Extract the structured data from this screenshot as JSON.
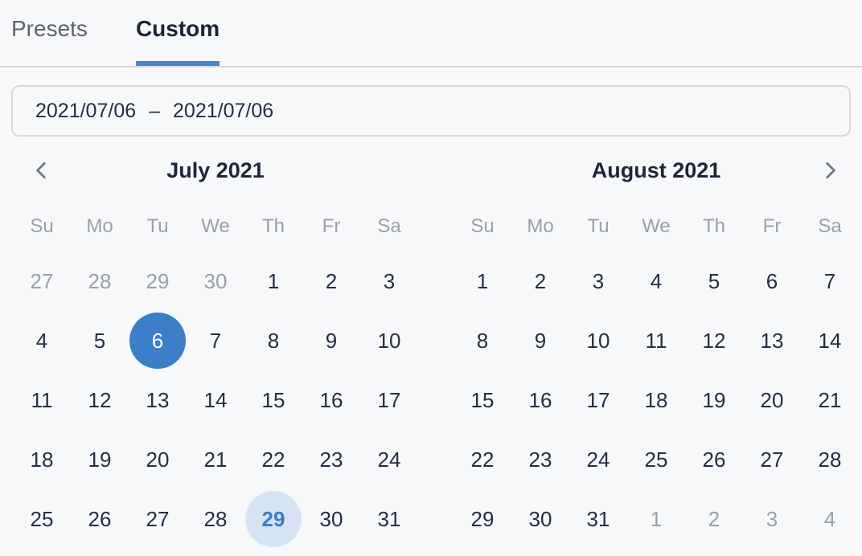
{
  "colors": {
    "accent": "#3d7ec9",
    "accent_underline": "#4285d1",
    "today_bg": "#d7e3f5",
    "today_text": "#3a7cc9",
    "text_dark": "#242e42",
    "text_muted": "#99a0a9",
    "title_text": "#1e2638",
    "tab_inactive": "#5c6370",
    "tab_active": "#1b2334",
    "divider": "#d8d9dc",
    "input_border": "#d5d7da",
    "background": "#f7f8fa",
    "chevron": "#6f7787",
    "selected_text": "#ffffff"
  },
  "tabs": [
    {
      "label": "Presets",
      "active": false
    },
    {
      "label": "Custom",
      "active": true
    }
  ],
  "range_input": {
    "start": "2021/07/06",
    "separator": "–",
    "end": "2021/07/06"
  },
  "nav": {
    "prev_icon": "chevron-left",
    "next_icon": "chevron-right"
  },
  "weekdays": [
    "Su",
    "Mo",
    "Tu",
    "We",
    "Th",
    "Fr",
    "Sa"
  ],
  "calendars": [
    {
      "title": "July 2021",
      "weeks": [
        [
          {
            "label": "27",
            "state": "muted"
          },
          {
            "label": "28",
            "state": "muted"
          },
          {
            "label": "29",
            "state": "muted"
          },
          {
            "label": "30",
            "state": "muted"
          },
          {
            "label": "1",
            "state": ""
          },
          {
            "label": "2",
            "state": ""
          },
          {
            "label": "3",
            "state": ""
          }
        ],
        [
          {
            "label": "4",
            "state": ""
          },
          {
            "label": "5",
            "state": ""
          },
          {
            "label": "6",
            "state": "selected"
          },
          {
            "label": "7",
            "state": ""
          },
          {
            "label": "8",
            "state": ""
          },
          {
            "label": "9",
            "state": ""
          },
          {
            "label": "10",
            "state": ""
          }
        ],
        [
          {
            "label": "11",
            "state": ""
          },
          {
            "label": "12",
            "state": ""
          },
          {
            "label": "13",
            "state": ""
          },
          {
            "label": "14",
            "state": ""
          },
          {
            "label": "15",
            "state": ""
          },
          {
            "label": "16",
            "state": ""
          },
          {
            "label": "17",
            "state": ""
          }
        ],
        [
          {
            "label": "18",
            "state": ""
          },
          {
            "label": "19",
            "state": ""
          },
          {
            "label": "20",
            "state": ""
          },
          {
            "label": "21",
            "state": ""
          },
          {
            "label": "22",
            "state": ""
          },
          {
            "label": "23",
            "state": ""
          },
          {
            "label": "24",
            "state": ""
          }
        ],
        [
          {
            "label": "25",
            "state": ""
          },
          {
            "label": "26",
            "state": ""
          },
          {
            "label": "27",
            "state": ""
          },
          {
            "label": "28",
            "state": ""
          },
          {
            "label": "29",
            "state": "today"
          },
          {
            "label": "30",
            "state": ""
          },
          {
            "label": "31",
            "state": ""
          }
        ]
      ]
    },
    {
      "title": "August 2021",
      "weeks": [
        [
          {
            "label": "1",
            "state": ""
          },
          {
            "label": "2",
            "state": ""
          },
          {
            "label": "3",
            "state": ""
          },
          {
            "label": "4",
            "state": ""
          },
          {
            "label": "5",
            "state": ""
          },
          {
            "label": "6",
            "state": ""
          },
          {
            "label": "7",
            "state": ""
          }
        ],
        [
          {
            "label": "8",
            "state": ""
          },
          {
            "label": "9",
            "state": ""
          },
          {
            "label": "10",
            "state": ""
          },
          {
            "label": "11",
            "state": ""
          },
          {
            "label": "12",
            "state": ""
          },
          {
            "label": "13",
            "state": ""
          },
          {
            "label": "14",
            "state": ""
          }
        ],
        [
          {
            "label": "15",
            "state": ""
          },
          {
            "label": "16",
            "state": ""
          },
          {
            "label": "17",
            "state": ""
          },
          {
            "label": "18",
            "state": ""
          },
          {
            "label": "19",
            "state": ""
          },
          {
            "label": "20",
            "state": ""
          },
          {
            "label": "21",
            "state": ""
          }
        ],
        [
          {
            "label": "22",
            "state": ""
          },
          {
            "label": "23",
            "state": ""
          },
          {
            "label": "24",
            "state": ""
          },
          {
            "label": "25",
            "state": ""
          },
          {
            "label": "26",
            "state": ""
          },
          {
            "label": "27",
            "state": ""
          },
          {
            "label": "28",
            "state": ""
          }
        ],
        [
          {
            "label": "29",
            "state": ""
          },
          {
            "label": "30",
            "state": ""
          },
          {
            "label": "31",
            "state": ""
          },
          {
            "label": "1",
            "state": "muted"
          },
          {
            "label": "2",
            "state": "muted"
          },
          {
            "label": "3",
            "state": "muted"
          },
          {
            "label": "4",
            "state": "muted"
          }
        ]
      ]
    }
  ]
}
